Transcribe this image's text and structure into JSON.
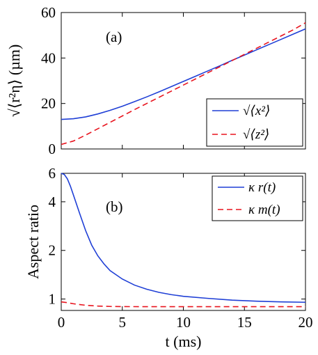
{
  "chart_data": [
    {
      "type": "line",
      "panel_label": "(a)",
      "xlim": [
        0,
        20
      ],
      "ylim": [
        0,
        60
      ],
      "xticks": [
        0,
        5,
        10,
        15,
        20
      ],
      "yticks": [
        0,
        20,
        40,
        60
      ],
      "ytick_labels": [
        "0",
        "20",
        "40",
        "60"
      ],
      "ylabel": "√⟨r²η⟩ (µm)",
      "legend_position": "bottom-right",
      "series": [
        {
          "name": "√⟨x²⟩",
          "color": "#1f3fd6",
          "style": "solid",
          "x": [
            0,
            1,
            2,
            3,
            4,
            5,
            6,
            7,
            8,
            9,
            10,
            11,
            12,
            13,
            14,
            15,
            16,
            17,
            18,
            19,
            20
          ],
          "y": [
            13.0,
            13.3,
            14.1,
            15.4,
            17.0,
            18.8,
            20.8,
            22.9,
            25.1,
            27.4,
            29.7,
            32.0,
            34.3,
            36.6,
            39.0,
            41.3,
            43.6,
            45.9,
            48.2,
            50.5,
            52.8
          ]
        },
        {
          "name": "√⟨z²⟩",
          "color": "#e8141e",
          "style": "dashed",
          "x": [
            0,
            1,
            2,
            3,
            4,
            5,
            6,
            7,
            8,
            9,
            10,
            11,
            12,
            13,
            14,
            15,
            16,
            17,
            18,
            19,
            20
          ],
          "y": [
            2.0,
            3.5,
            6.1,
            8.9,
            11.7,
            14.5,
            17.3,
            20.0,
            22.7,
            25.4,
            28.1,
            30.8,
            33.5,
            36.2,
            38.9,
            41.6,
            44.3,
            47.0,
            49.7,
            52.4,
            55.5
          ]
        }
      ]
    },
    {
      "type": "line",
      "panel_label": "(b)",
      "xlim": [
        0,
        20
      ],
      "ylim": [
        0.85,
        6
      ],
      "xticks": [
        0,
        5,
        10,
        15,
        20
      ],
      "yticks": [
        1,
        2,
        4,
        6
      ],
      "ytick_labels": [
        "1",
        "2",
        "4",
        "6"
      ],
      "yscale": "log",
      "xlabel": "t (ms)",
      "ylabel": "Aspect ratio",
      "legend_position": "top-right",
      "series": [
        {
          "name": "κ r(t)",
          "color": "#1f3fd6",
          "style": "solid",
          "x": [
            0,
            0.25,
            0.5,
            0.75,
            1,
            1.5,
            2,
            2.5,
            3,
            3.5,
            4,
            5,
            6,
            7,
            8,
            9,
            10,
            12,
            14,
            16,
            18,
            20
          ],
          "y": [
            6.0,
            5.9,
            5.55,
            5.0,
            4.4,
            3.4,
            2.65,
            2.15,
            1.85,
            1.65,
            1.5,
            1.33,
            1.22,
            1.15,
            1.1,
            1.065,
            1.04,
            1.01,
            0.985,
            0.97,
            0.96,
            0.955
          ]
        },
        {
          "name": "κ m(t)",
          "color": "#e8141e",
          "style": "dashed",
          "x": [
            0,
            0.5,
            1,
            2,
            3,
            4,
            5,
            7,
            10,
            15,
            20
          ],
          "y": [
            0.96,
            0.95,
            0.935,
            0.915,
            0.905,
            0.9,
            0.898,
            0.897,
            0.897,
            0.897,
            0.897
          ]
        }
      ]
    }
  ]
}
